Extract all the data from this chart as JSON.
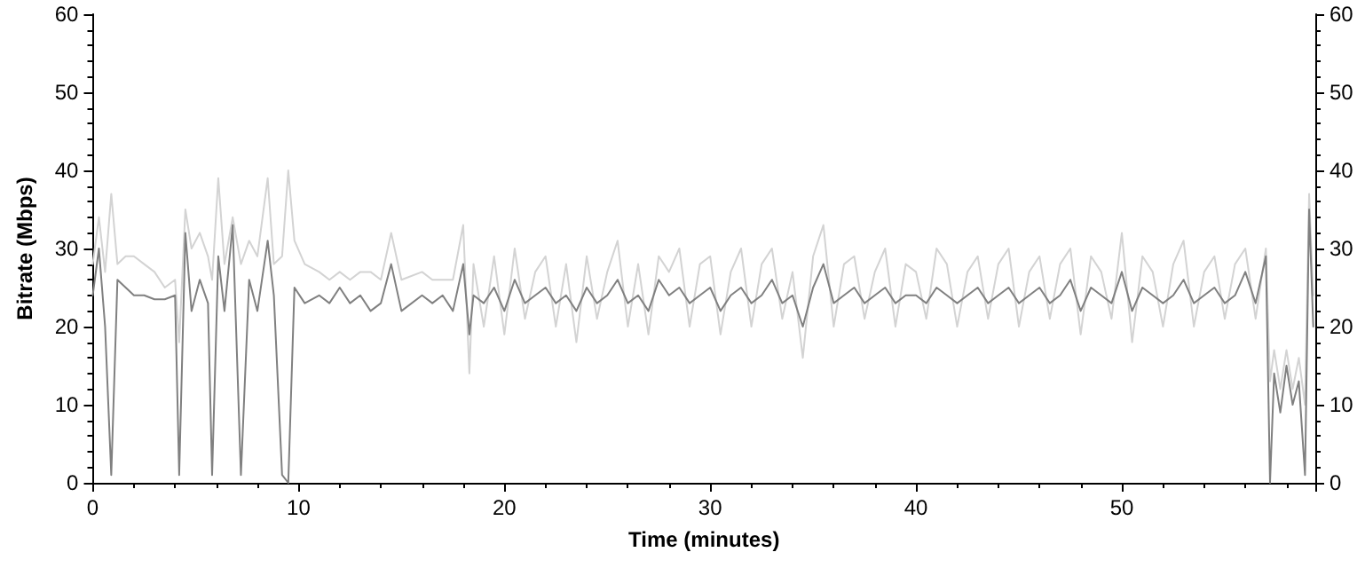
{
  "chart_data": {
    "type": "line",
    "xlabel": "Time (minutes)",
    "ylabel": "Bitrate (Mbps)",
    "x": [
      0,
      0.3,
      0.6,
      0.9,
      1.2,
      1.6,
      2,
      2.5,
      3,
      3.5,
      4,
      4.2,
      4.5,
      4.8,
      5.2,
      5.6,
      5.8,
      6.1,
      6.4,
      6.8,
      7.2,
      7.6,
      8,
      8.5,
      8.8,
      9.2,
      9.5,
      9.8,
      10.3,
      11,
      11.5,
      12,
      12.5,
      13,
      13.5,
      14,
      14.5,
      15,
      16,
      16.5,
      17,
      17.5,
      18,
      18.3,
      18.5,
      19,
      19.5,
      20,
      20.5,
      21,
      21.5,
      22,
      22.5,
      23,
      23.5,
      24,
      24.5,
      25,
      25.5,
      26,
      26.5,
      27,
      27.5,
      28,
      28.5,
      29,
      29.5,
      30,
      30.5,
      31,
      31.5,
      32,
      32.5,
      33,
      33.5,
      34,
      34.5,
      35,
      35.5,
      36,
      36.5,
      37,
      37.5,
      38,
      38.5,
      39,
      39.5,
      40,
      40.5,
      41,
      41.5,
      42,
      42.5,
      43,
      43.5,
      44,
      44.5,
      45,
      45.5,
      46,
      46.5,
      47,
      47.5,
      48,
      48.5,
      49,
      49.5,
      50,
      50.5,
      51,
      51.5,
      52,
      52.5,
      53,
      53.5,
      54,
      54.5,
      55,
      55.5,
      56,
      56.5,
      57,
      57.2,
      57.4,
      57.7,
      58,
      58.3,
      58.6,
      58.9,
      59.1,
      59.3
    ],
    "series": [
      {
        "color": "#d3d3d3",
        "values": [
          28,
          34,
          27,
          37,
          28,
          29,
          29,
          28,
          27,
          25,
          26,
          18,
          35,
          30,
          32,
          29,
          26,
          39,
          28,
          34,
          28,
          31,
          29,
          39,
          28,
          29,
          40,
          31,
          28,
          27,
          26,
          27,
          26,
          27,
          27,
          26,
          32,
          26,
          27,
          26,
          26,
          26,
          33,
          14,
          28,
          20,
          29,
          19,
          30,
          21,
          27,
          29,
          20,
          28,
          18,
          29,
          21,
          27,
          31,
          20,
          28,
          19,
          29,
          27,
          30,
          20,
          28,
          29,
          19,
          27,
          30,
          20,
          28,
          30,
          21,
          27,
          16,
          29,
          33,
          20,
          28,
          29,
          21,
          27,
          30,
          20,
          28,
          27,
          21,
          30,
          28,
          20,
          27,
          29,
          21,
          28,
          30,
          20,
          27,
          29,
          21,
          28,
          30,
          19,
          29,
          27,
          21,
          32,
          18,
          29,
          27,
          20,
          28,
          31,
          20,
          27,
          29,
          21,
          28,
          30,
          21,
          30,
          13,
          17,
          12,
          17,
          12,
          16,
          10,
          37,
          24
        ]
      },
      {
        "color": "#808080",
        "values": [
          24,
          30,
          20,
          1,
          26,
          25,
          24,
          24,
          23.5,
          23.5,
          24,
          1,
          32,
          22,
          26,
          23,
          1,
          29,
          22,
          33,
          1,
          26,
          22,
          31,
          24,
          1,
          0,
          25,
          23,
          24,
          23,
          25,
          23,
          24,
          22,
          23,
          28,
          22,
          24,
          23,
          24,
          22,
          28,
          19,
          24,
          23,
          25,
          22,
          26,
          23,
          24,
          25,
          23,
          24,
          22,
          25,
          23,
          24,
          26,
          23,
          24,
          22,
          26,
          24,
          25,
          23,
          24,
          25,
          22,
          24,
          25,
          23,
          24,
          26,
          23,
          24,
          20,
          25,
          28,
          23,
          24,
          25,
          23,
          24,
          25,
          23,
          24,
          24,
          23,
          25,
          24,
          23,
          24,
          25,
          23,
          24,
          25,
          23,
          24,
          25,
          23,
          24,
          26,
          22,
          25,
          24,
          23,
          27,
          22,
          25,
          24,
          23,
          24,
          26,
          23,
          24,
          25,
          23,
          24,
          27,
          23,
          29,
          0,
          14,
          9,
          15,
          10,
          13,
          1,
          35,
          20
        ]
      }
    ],
    "xlim": [
      0,
      59.4
    ],
    "xticks": [
      0,
      10,
      20,
      30,
      40,
      50
    ],
    "ylim": [
      0,
      60
    ],
    "yticks": [
      0,
      10,
      20,
      30,
      40,
      50,
      60
    ],
    "y2lim": [
      0,
      60
    ],
    "y2ticks": [
      0,
      10,
      20,
      30,
      40,
      50,
      60
    ],
    "grid": false,
    "marker": "none",
    "line_style": "solid"
  }
}
